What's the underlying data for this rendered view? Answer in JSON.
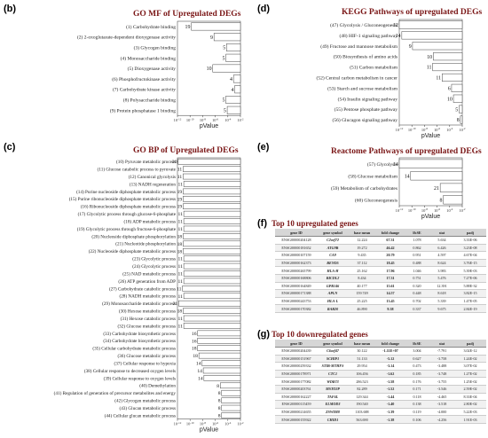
{
  "panels": {
    "b": "(b)",
    "c": "(c)",
    "d": "(d)",
    "e": "(e)",
    "f": "(f)",
    "g": "(g)"
  },
  "chart_data": [
    {
      "id": "b",
      "type": "bar",
      "orientation": "horizontal",
      "title": "GO MF of Upregulated DEGs",
      "xlabel": "pValue",
      "x_scale": "log10",
      "xlim": [
        1e-12,
        0.01
      ],
      "x_ticks": [
        -12,
        -10,
        -8,
        -6,
        -4,
        -2
      ],
      "categories": [
        "(1) Carbohydrate binding",
        "(2) 2-oxoglutarate-dependent dioxygenase activity",
        "(3) Glycogen binding",
        "(4) Monosaccharide binding",
        "(5) Dioxygenase activity",
        "(6) Phosphofructokinase activity",
        "(7) Carbohydrate kinase activity",
        "(8) Polysaccharide binding",
        "(9) Protein phosphatase 1 binding"
      ],
      "values_log10": [
        -9.8,
        -6.2,
        -4.2,
        -4.3,
        -6.4,
        -3.1,
        -2.9,
        -4.3,
        -4.1
      ],
      "counts": [
        "19",
        "9",
        "5",
        "5",
        "10",
        "4",
        "4",
        "5",
        "5"
      ]
    },
    {
      "id": "c",
      "type": "bar",
      "orientation": "horizontal",
      "title": "GO BP of Upregulated DEGs",
      "xlabel": "pValue",
      "x_scale": "log10",
      "xlim": [
        1e-12,
        0.01
      ],
      "x_ticks": [
        -12,
        -10,
        -8,
        -6,
        -4,
        -2
      ],
      "categories": [
        "(10) Pyruvate metabolic process",
        "(11) Glucose catabolic process to pyruvate",
        "(12) Canonical glycolysis",
        "(13) NADH regeneration",
        "(14) Purine nucleoside diphosphate metabolic process",
        "(15) Purine ribonucleoside diphosphate metabolic process",
        "(16) Ribonucleoside diphosphate metabolic process",
        "(17) Glycolytic process through glucose-6-phosphate",
        "(18) ADP metabolic process",
        "(19) Glycolytic process through fructose-6-phosphate",
        "(20) Nucleoside diphosphate phosphorylation",
        "(21) Nucleotide phosphorylation",
        "(22) Nucleoside diphosphate metabolic process",
        "(23) Glycolytic process",
        "(24) Glycolytic process",
        "(25) NAD metabolic process",
        "(26) ATP generation from ADP",
        "(27) Carbohydrate catabolic process",
        "(28) NADH metabolic process",
        "(29) Monosaccharide metabolic process",
        "(30) Hexose metabolic process",
        "(31) Hexose catabolic process",
        "(32) Glucose metabolic process",
        "(33) Carbohydrate biosynthetic process",
        "(34) Carbohydrate biosynthetic process",
        "(35) Cellular carbohydrate metabolic process",
        "(36) Glucose metabolic process",
        "(37) Cellular response to hypoxia",
        "(38) Cellular response to decreased oxygen levels",
        "(39) Cellular response to oxygen levels",
        "(40) Demethylation",
        "(41) Regulation of generation of precursor metabolites and energy",
        "(42) Glycogen metabolic process",
        "(43) Glucan metabolic process",
        "(44) Cellular glucan metabolic process"
      ],
      "values_log10": [
        -11.9,
        -11.1,
        -11.1,
        -11.0,
        -11.1,
        -11.1,
        -11.1,
        -11.0,
        -11.0,
        -11.0,
        -11.1,
        -11.1,
        -11.1,
        -11.0,
        -11.0,
        -11.0,
        -11.0,
        -11.2,
        -11.0,
        -11.8,
        -11.1,
        -11.0,
        -11.0,
        -8.8,
        -8.8,
        -8.8,
        -8.6,
        -8.1,
        -7.9,
        -7.8,
        -5.2,
        -5.0,
        -5.0,
        -5.0,
        -5.0
      ],
      "counts": [
        "20",
        "11",
        "11",
        "11",
        "19",
        "19",
        "19",
        "11",
        "11",
        "11",
        "18",
        "18",
        "18",
        "11",
        "11",
        "11",
        "11",
        "11",
        "11",
        "21",
        "18",
        "11",
        "11",
        "16",
        "16",
        "18",
        "18",
        "14",
        "14",
        "14",
        "8",
        "8",
        "8",
        "8",
        "8"
      ]
    },
    {
      "id": "d",
      "type": "bar",
      "orientation": "horizontal",
      "title": "KEGG Pathways of upregulated DEGs",
      "xlabel": "pValue",
      "x_scale": "log10",
      "xlim": [
        1e-12,
        0.01
      ],
      "x_ticks": [
        -12,
        -10,
        -8,
        -6,
        -4,
        -2
      ],
      "categories": [
        "(47) Glycolysis / Gluconeogenesis",
        "(48) HIF-1 signaling pathway",
        "(49) Fructose and mannose metabolism",
        "(50) Biosynthesis of amino acids",
        "(51) Carbon metabolism",
        "(52) Central carbon metabolism in cancer",
        "(53) Starch and sucrose metabolism",
        "(54) Insulin signaling pathway",
        "(55) Pentose phosphate pathway",
        "(56) Glucagon signaling pathway"
      ],
      "values_log10": [
        -12.0,
        -11.6,
        -9.9,
        -6.6,
        -6.7,
        -5.2,
        -3.7,
        -3.4,
        -2.5,
        -2.3
      ],
      "counts": [
        "12",
        "14",
        "9",
        "10",
        "11",
        "11",
        "6",
        "10",
        "5",
        "8"
      ]
    },
    {
      "id": "e",
      "type": "bar",
      "orientation": "horizontal",
      "title": "Reactome Pathways of upregulated DEGs",
      "xlabel": "pValue",
      "x_scale": "log10",
      "xlim": [
        1e-12,
        0.01
      ],
      "x_ticks": [
        -12,
        -10,
        -8,
        -6,
        -4,
        -2
      ],
      "categories": [
        "(57) Glycolysis",
        "(58) Glucose metabolism",
        "(59) Metabolism of carbohydrates",
        "(60) Gluconeogenesis"
      ],
      "values_log10": [
        -12.0,
        -10.2,
        -5.5,
        -5.0
      ],
      "counts": [
        "14",
        "14",
        "21",
        "8"
      ]
    }
  ],
  "tables": [
    {
      "id": "f",
      "title": "Top 10 upregulated genes",
      "columns": [
        "gene ID",
        "gene symbol",
        "base mean",
        "fold change",
        "lfcSE",
        "stat",
        "padj"
      ],
      "rows": [
        [
          "ENSG00000204128",
          "C2orf72",
          "12.224",
          "67.31",
          "1.078",
          "5.634",
          "3.33E-06"
        ],
        [
          "ENSG00000181652",
          "ATG9B",
          "19.272",
          "46.42",
          "0.862",
          "6.426",
          "3.23E-08"
        ],
        [
          "ENSG00000107159",
          "CA9",
          "9.435",
          "20.79",
          "0.951",
          "4.597",
          "4.67E-04"
        ],
        [
          "ENSG00000162373",
          "BEND5",
          "37.112",
          "18.45",
          "0.488",
          "8.624",
          "3.76E-15"
        ],
        [
          "ENSG00000265799",
          "HLA-H",
          "25.162",
          "17.96",
          "1.046",
          "3.983",
          "5.39E-03"
        ],
        [
          "ENSG00000168806",
          "BICDL2",
          "8.434",
          "17.31",
          "0.751",
          "5.476",
          "7.27E-06"
        ],
        [
          "ENSG00000164849",
          "GPR146",
          "40.177",
          "15.61",
          "0.320",
          "12.391",
          "5.88E-32"
        ],
        [
          "ENSG00000171388",
          "APLN",
          "159.749",
          "14.57",
          "0.448",
          "8.618",
          "3.82E-15"
        ],
        [
          "ENSG00000243753",
          "HLA-L",
          "25.225",
          "13.45",
          "0.702",
          "5.339",
          "1.47E-05"
        ],
        [
          "ENSG00000170382",
          "RAB20",
          "46.890",
          "9.38",
          "0.337",
          "9.675",
          "2.84E-19"
        ]
      ]
    },
    {
      "id": "g",
      "title": "Top 10 downregulated genes",
      "columns": [
        "gene ID",
        "gene symbol",
        "base mean",
        "fold change",
        "lfcSE",
        "stat",
        "padj"
      ],
      "rows": [
        [
          "ENSG00000204439",
          "C6orf47",
          "30.122",
          "-1.11E+07",
          "3.004",
          "-7.791",
          "3.02E-12"
        ],
        [
          "ENSG00000151967",
          "SCHIP1",
          "51.133",
          "-5.12",
          "0.627",
          "-3.758",
          "1.24E-02"
        ],
        [
          "ENSG00000259332",
          "STIB-MTHFS",
          "29.954",
          "-3.14",
          "0.473",
          "-3.488",
          "3.07E-02"
        ],
        [
          "ENSG00000178971",
          "CTC1",
          "106.456",
          "-1.62",
          "0.185",
          "-3.748",
          "1.27E-02"
        ],
        [
          "ENSG00000177082",
          "WDR73",
          "286.523",
          "-1.58",
          "0.176",
          "-3.755",
          "1.25E-02"
        ],
        [
          "ENSG00000203761",
          "MSTO2P",
          "82.289",
          "-1.52",
          "0.171",
          "-3.546",
          "2.59E-02"
        ],
        [
          "ENSG00000162227",
          "TAF6L",
          "129.344",
          "-1.44",
          "0.118",
          "-4.465",
          "8.33E-04"
        ],
        [
          "ENSG00000115459",
          "ELMOD3",
          "190.540",
          "-1.40",
          "0.138",
          "-3.518",
          "2.80E-02"
        ],
        [
          "ENSG00000214655",
          "ZSWIM8",
          "1103.688",
          "-1.39",
          "0.119",
          "-4.000",
          "5.22E-03"
        ],
        [
          "ENSG00000155922",
          "CHID1",
          "563.690",
          "-1.38",
          "0.106",
          "-4.256",
          "1.91E-03"
        ]
      ]
    }
  ]
}
